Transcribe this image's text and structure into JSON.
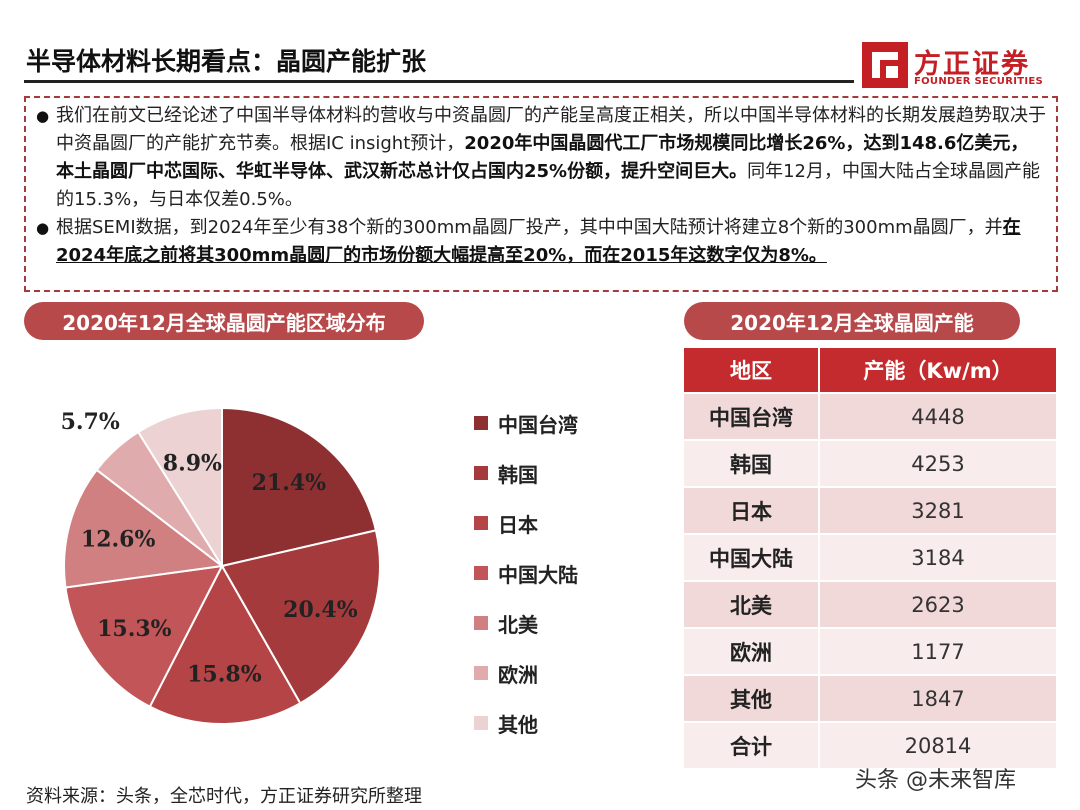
{
  "header": {
    "title": "半导体材料长期看点：晶圆产能扩张",
    "logo_cn": "方正证券",
    "logo_en": "FOUNDER SECURITIES"
  },
  "bullets": [
    {
      "parts": [
        {
          "t": "我们在前文已经论述了中国半导体材料的营收与中资晶圆厂的产能呈高度正相关，所以中国半导体材料的长期发展趋势取决于中资晶圆厂的产能扩充节奏。根据IC insight预计，",
          "s": "n"
        },
        {
          "t": "2020年中国晶圆代工厂市场规模同比增长26%，达到148.6亿美元，本土晶圆厂中芯国际、华虹半导体、武汉新芯总计仅占国内25%份额，提升空间巨大。",
          "s": "b"
        },
        {
          "t": "同年12月，中国大陆占全球晶圆产能的15.3%，与日本仅差0.5%。",
          "s": "n"
        }
      ]
    },
    {
      "parts": [
        {
          "t": "根据SEMI数据，到2024年至少有38个新的300mm晶圆厂投产，其中中国大陆预计将建立8个新的300mm晶圆厂，并",
          "s": "n"
        },
        {
          "t": "在2024年底之前将其300mm晶圆厂的市场份额大幅提高至20%，而在2015年这数字仅为8%。",
          "s": "u"
        }
      ]
    }
  ],
  "pie_section_label": "2020年12月全球晶圆产能区域分布",
  "table_section_label": "2020年12月全球晶圆产能",
  "chart_data": {
    "type": "pie",
    "categories": [
      "中国台湾",
      "韩国",
      "日本",
      "中国大陆",
      "北美",
      "欧洲",
      "其他"
    ],
    "values": [
      21.4,
      20.4,
      15.8,
      15.3,
      12.6,
      5.7,
      8.9
    ],
    "labels": [
      "21.4%",
      "20.4%",
      "15.8%",
      "15.3%",
      "12.6%",
      "5.7%",
      "8.9%"
    ],
    "colors": [
      "#8e2f31",
      "#a53a3c",
      "#b54446",
      "#c25557",
      "#d08081",
      "#e0abac",
      "#ecd2d3"
    ]
  },
  "table": {
    "headers": [
      "地区",
      "产能（Kw/m）"
    ],
    "rows": [
      {
        "region": "中国台湾",
        "value": "4448"
      },
      {
        "region": "韩国",
        "value": "4253"
      },
      {
        "region": "日本",
        "value": "3281"
      },
      {
        "region": "中国大陆",
        "value": "3184"
      },
      {
        "region": "北美",
        "value": "2623"
      },
      {
        "region": "欧洲",
        "value": "1177"
      },
      {
        "region": "其他",
        "value": "1847"
      },
      {
        "region": "合计",
        "value": "20814"
      }
    ]
  },
  "footer": {
    "source": "资料来源：头条，全芯时代，方正证券研究所整理",
    "watermark": "头条 @未来智库"
  }
}
